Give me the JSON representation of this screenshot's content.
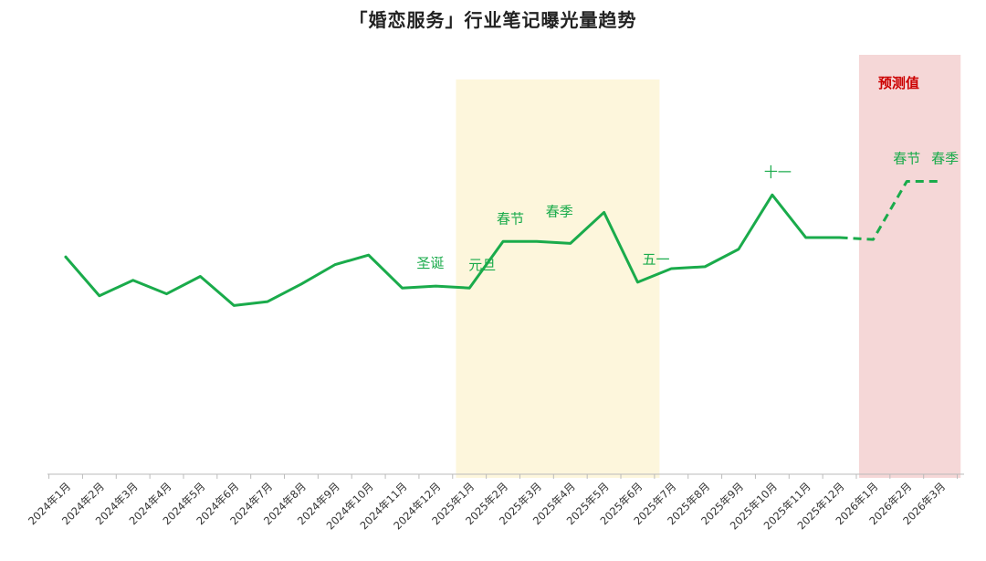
{
  "chart_data": {
    "type": "line",
    "title": "「婚恋服务」行业笔记曝光量趋势",
    "xlabel": "",
    "ylabel": "",
    "categories": [
      "2024年1月",
      "2024年2月",
      "2024年3月",
      "2024年4月",
      "2024年5月",
      "2024年6月",
      "2024年7月",
      "2024年8月",
      "2024年9月",
      "2024年10月",
      "2024年11月",
      "2024年12月",
      "2025年1月",
      "2025年2月",
      "2025年3月",
      "2025年4月",
      "2025年5月",
      "2025年6月",
      "2025年7月",
      "2025年8月",
      "2025年9月",
      "2025年10月",
      "2025年11月",
      "2025年12月",
      "2026年1月",
      "2026年2月",
      "2026年3月"
    ],
    "series": [
      {
        "values": [
          56,
          46,
          50,
          46.5,
          51,
          43.5,
          44.5,
          49,
          54,
          56.5,
          48,
          48.5,
          48,
          60,
          60,
          59.5,
          67.5,
          49.5,
          53,
          53.5,
          58,
          72,
          61,
          61,
          60.5,
          75.5,
          75.5
        ]
      }
    ],
    "forecast_start_index": 23,
    "ylim": [
      0,
      110
    ],
    "grid": false,
    "colors": {
      "line": "#1aab4b",
      "highlight": "#fdf6dc",
      "forecast": "#f5d7d7",
      "forecast_text": "#cc0000",
      "annotation": "#1aab4b"
    },
    "highlight_region": {
      "from_index": 12,
      "to_index": 17
    },
    "forecast_region": {
      "from_index": 24,
      "to_index": 26,
      "label": "预测值"
    },
    "annotations": [
      {
        "index": 11,
        "text": "圣诞"
      },
      {
        "index": 12,
        "text": "元旦"
      },
      {
        "index": 13,
        "text": "春节"
      },
      {
        "index": 15,
        "text": "春季"
      },
      {
        "index": 17,
        "text": "五一"
      },
      {
        "index": 21,
        "text": "十一"
      },
      {
        "index": 25,
        "text": "春节"
      },
      {
        "index": 26,
        "text": "春季"
      }
    ]
  }
}
